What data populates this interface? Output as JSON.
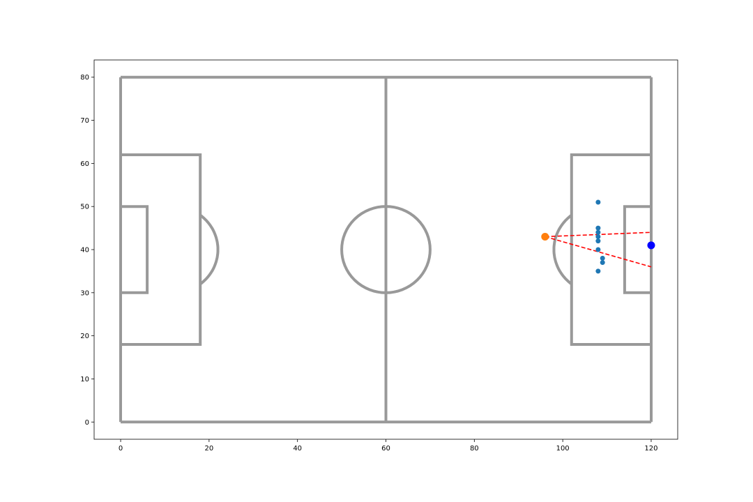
{
  "chart_data": {
    "type": "scatter",
    "title": "",
    "xlabel": "",
    "ylabel": "",
    "xlim": [
      -6,
      126
    ],
    "ylim": [
      -4,
      84
    ],
    "grid": false,
    "x_ticks": [
      0,
      20,
      40,
      60,
      80,
      100,
      120
    ],
    "y_ticks": [
      0,
      10,
      20,
      30,
      40,
      50,
      60,
      70,
      80
    ],
    "colors": {
      "pitch": "#999999",
      "players": "#1f77b4",
      "shooter": "#ff7f0e",
      "goalkeeper": "#0000ff",
      "shot_cone": "#ff0000"
    },
    "pitch_lines": [
      {
        "name": "touchline-top",
        "points": [
          [
            0,
            80
          ],
          [
            120,
            80
          ]
        ]
      },
      {
        "name": "touchline-bottom",
        "points": [
          [
            0,
            0
          ],
          [
            120,
            0
          ]
        ]
      },
      {
        "name": "goal-line-left",
        "points": [
          [
            0,
            0
          ],
          [
            0,
            80
          ]
        ]
      },
      {
        "name": "goal-line-right",
        "points": [
          [
            120,
            0
          ],
          [
            120,
            80
          ]
        ]
      },
      {
        "name": "halfway-line",
        "points": [
          [
            60,
            0
          ],
          [
            60,
            80
          ]
        ]
      },
      {
        "name": "penalty-box-left",
        "points": [
          [
            0,
            62
          ],
          [
            18,
            62
          ],
          [
            18,
            18
          ],
          [
            0,
            18
          ]
        ]
      },
      {
        "name": "six-yard-box-left",
        "points": [
          [
            0,
            50
          ],
          [
            6,
            50
          ],
          [
            6,
            30
          ],
          [
            0,
            30
          ]
        ]
      },
      {
        "name": "penalty-box-right",
        "points": [
          [
            120,
            62
          ],
          [
            102,
            62
          ],
          [
            102,
            18
          ],
          [
            120,
            18
          ]
        ]
      },
      {
        "name": "six-yard-box-right",
        "points": [
          [
            120,
            50
          ],
          [
            114,
            50
          ],
          [
            114,
            30
          ],
          [
            120,
            30
          ]
        ]
      }
    ],
    "center_circle": {
      "center": [
        60,
        40
      ],
      "radius": 10
    },
    "penalty_arcs": [
      {
        "name": "penalty-arc-left",
        "center": [
          12,
          40
        ],
        "radius": 10,
        "side": "left"
      },
      {
        "name": "penalty-arc-right",
        "center": [
          108,
          40
        ],
        "radius": 10,
        "side": "right"
      }
    ],
    "players": [
      {
        "x": 108,
        "y": 51
      },
      {
        "x": 108,
        "y": 45
      },
      {
        "x": 108,
        "y": 44
      },
      {
        "x": 108,
        "y": 43
      },
      {
        "x": 108,
        "y": 42
      },
      {
        "x": 108,
        "y": 40
      },
      {
        "x": 109,
        "y": 38
      },
      {
        "x": 109,
        "y": 37
      },
      {
        "x": 108,
        "y": 35
      }
    ],
    "shooter": {
      "x": 96,
      "y": 43
    },
    "goalkeeper": {
      "x": 120,
      "y": 41
    },
    "shot_cone": [
      {
        "from": [
          96,
          43
        ],
        "to": [
          120,
          44
        ]
      },
      {
        "from": [
          96,
          43
        ],
        "to": [
          120,
          36
        ]
      }
    ]
  }
}
